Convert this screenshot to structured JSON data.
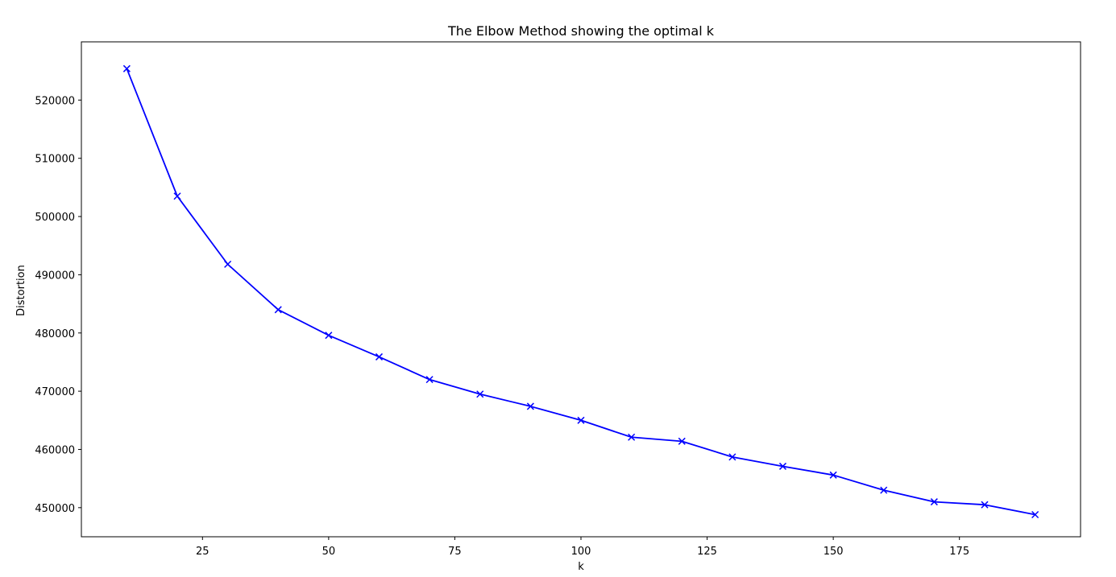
{
  "chart_data": {
    "type": "line",
    "title": "The Elbow Method showing the optimal k",
    "xlabel": "k",
    "ylabel": "Distortion",
    "xlim": [
      1,
      199
    ],
    "ylim": [
      445000,
      530000
    ],
    "grid": false,
    "x_ticks": [
      25,
      50,
      75,
      100,
      125,
      150,
      175
    ],
    "x_tick_labels": [
      "25",
      "50",
      "75",
      "100",
      "125",
      "150",
      "175"
    ],
    "y_ticks": [
      450000,
      460000,
      470000,
      480000,
      490000,
      500000,
      510000,
      520000
    ],
    "y_tick_labels": [
      "450000",
      "460000",
      "470000",
      "480000",
      "490000",
      "500000",
      "510000",
      "520000"
    ],
    "series": [
      {
        "color": "#0000ff",
        "marker": "x",
        "x": [
          10,
          20,
          30,
          40,
          50,
          60,
          70,
          80,
          90,
          100,
          110,
          120,
          130,
          140,
          150,
          160,
          170,
          180,
          190
        ],
        "y": [
          525400,
          503500,
          491800,
          484000,
          479600,
          475900,
          472000,
          469500,
          467400,
          465000,
          462100,
          461400,
          458700,
          457100,
          455600,
          453000,
          451000,
          450500,
          448800
        ]
      }
    ]
  }
}
